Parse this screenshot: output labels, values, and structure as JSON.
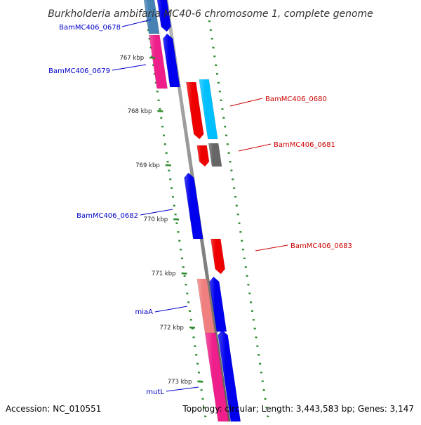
{
  "title": "Burkholderia ambifaria MC40-6 chromosome 1, complete genome",
  "accession_label": "Accession: NC_010551",
  "summary_label": "Topology: circular; Length: 3,443,583 bp; Genes: 3,147",
  "ticks": [
    {
      "label": "767 kbp"
    },
    {
      "label": "768 kbp"
    },
    {
      "label": "769 kbp"
    },
    {
      "label": "770 kbp"
    },
    {
      "label": "771 kbp"
    },
    {
      "label": "772 kbp"
    },
    {
      "label": "773 kbp"
    }
  ],
  "gene_labels": [
    {
      "text": "BamMC406_0678",
      "color": "#0000cc"
    },
    {
      "text": "BamMC406_0679",
      "color": "#0000cc"
    },
    {
      "text": "BamMC406_0680",
      "color": "#cc0000"
    },
    {
      "text": "BamMC406_0681",
      "color": "#cc0000"
    },
    {
      "text": "BamMC406_0682",
      "color": "#0000cc"
    },
    {
      "text": "BamMC406_0683",
      "color": "#cc0000"
    },
    {
      "text": "miaA",
      "color": "#0000cc"
    },
    {
      "text": "mutL",
      "color": "#0000cc"
    }
  ],
  "colors": {
    "backbone": "#8a8a8a",
    "tick_marks": "#2e8b2e",
    "gene_blue": "#0000ee",
    "gene_red": "#ee0000",
    "gene_pink": "#ee1f8a",
    "gene_light_red": "#f08080",
    "gene_cyan": "#00bfff",
    "gene_steel": "#4682b4",
    "gene_gray": "#666666"
  }
}
